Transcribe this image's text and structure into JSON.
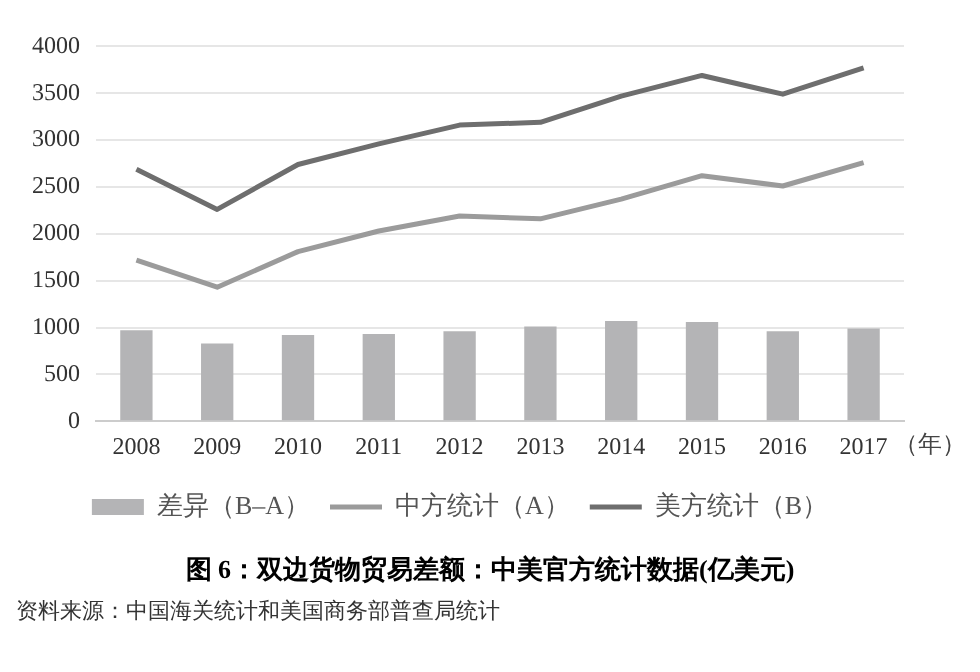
{
  "chart_data": {
    "type": "bar",
    "title": "图 6：双边货物贸易差额：中美官方统计数据(亿美元)",
    "xlabel": "（年）",
    "categories": [
      "2008",
      "2009",
      "2010",
      "2011",
      "2012",
      "2013",
      "2014",
      "2015",
      "2016",
      "2017"
    ],
    "series": [
      {
        "name": "差异（B–A）",
        "color": "#b4b4b6",
        "values": [
          970,
          830,
          920,
          930,
          960,
          1010,
          1070,
          1060,
          960,
          990
        ]
      },
      {
        "name": "中方统计（A）",
        "type": "line",
        "color": "#9b9b9b",
        "values": [
          1720,
          1430,
          1810,
          2030,
          2190,
          2160,
          2370,
          2620,
          2510,
          2760
        ]
      },
      {
        "name": "美方统计（B）",
        "type": "line",
        "color": "#6e6e6e",
        "values": [
          2690,
          2260,
          2740,
          2960,
          3160,
          3190,
          3470,
          3690,
          3490,
          3770
        ]
      }
    ],
    "ylim": [
      0,
      4000
    ],
    "yticks": [
      0,
      500,
      1000,
      1500,
      2000,
      2500,
      3000,
      3500,
      4000
    ],
    "grid": "y",
    "legend": "bottom",
    "marker": "none",
    "annotations": [
      "资料来源：中国海关统计和美国商务部普查局统计"
    ]
  }
}
